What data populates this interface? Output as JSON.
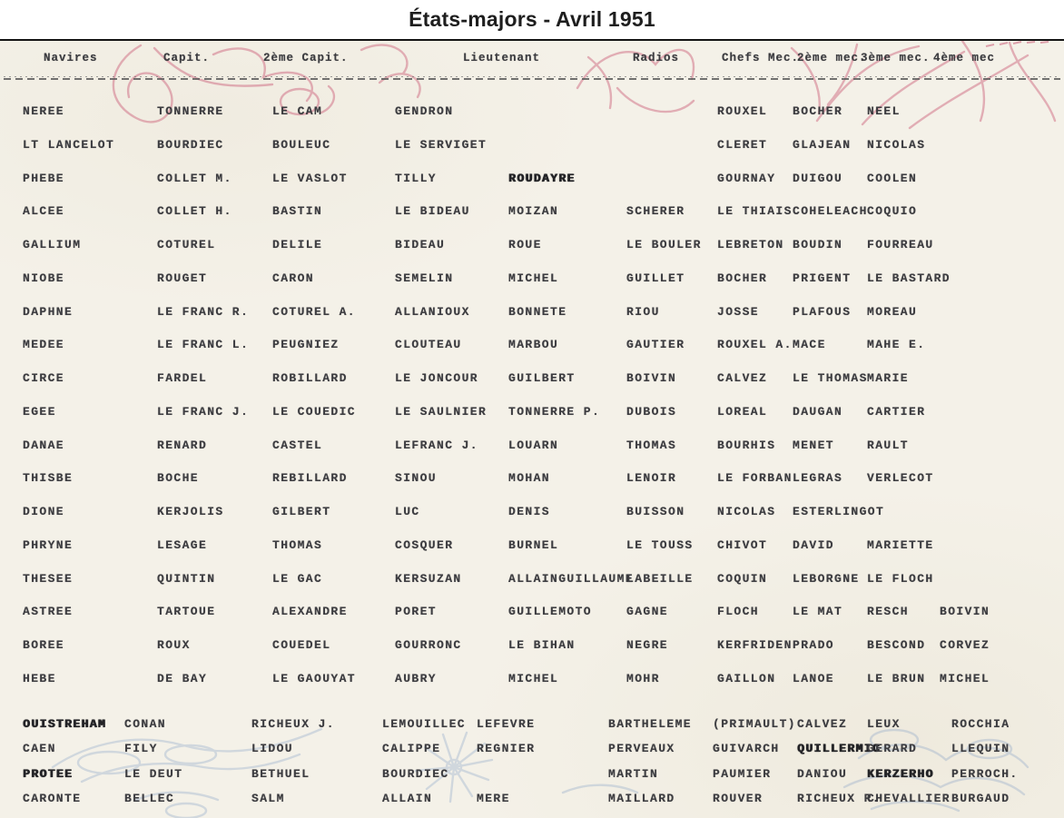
{
  "title": "États-majors - Avril 1951",
  "colors": {
    "paper": "#f4f1e8",
    "typewriter_ink": "#3c3c40",
    "red_flourish": "#c8506e",
    "blue_flourish": "#7f9cc4"
  },
  "table": {
    "headers": [
      "Navires",
      "Capit.",
      "2ème Capit.",
      "Lieutenant",
      "Radios",
      "Chefs Mec.",
      "2ème mec.",
      "3ème mec.",
      "4ème mec"
    ],
    "rows": [
      {
        "ship": "NEREE",
        "crew": [
          "TONNERRE",
          "LE CAM",
          "GENDRON",
          "",
          "",
          "ROUXEL",
          "BOCHER",
          "NEEL",
          ""
        ]
      },
      {
        "ship": "LT LANCELOT",
        "crew": [
          "BOURDIEC",
          "BOULEUC",
          "LE SERVIGET",
          "",
          "",
          "CLERET",
          "GLAJEAN",
          "NICOLAS",
          ""
        ]
      },
      {
        "ship": "PHEBE",
        "crew": [
          "COLLET M.",
          "LE VASLOT",
          "TILLY",
          {
            "t": "ROUDAYRE",
            "bold": true
          },
          "",
          "GOURNAY",
          "DUIGOU",
          "COOLEN",
          ""
        ]
      },
      {
        "ship": "ALCEE",
        "crew": [
          "COLLET H.",
          "BASTIN",
          "LE BIDEAU",
          "MOIZAN",
          "SCHERER",
          "LE THIAIS",
          "COHELEACH",
          "COQUIO",
          ""
        ]
      },
      {
        "ship": "GALLIUM",
        "crew": [
          "COTUREL",
          "DELILE",
          "BIDEAU",
          "ROUE",
          "LE BOULER",
          "LEBRETON",
          "BOUDIN",
          "FOURREAU",
          ""
        ]
      },
      {
        "ship": "NIOBE",
        "crew": [
          "ROUGET",
          "CARON",
          "SEMELIN",
          "MICHEL",
          "GUILLET",
          "BOCHER",
          "PRIGENT",
          "LE BASTARD",
          ""
        ]
      },
      {
        "ship": "DAPHNE",
        "crew": [
          "LE FRANC R.",
          "COTUREL A.",
          "ALLANIOUX",
          "BONNETE",
          "RIOU",
          "JOSSE",
          "PLAFOUS",
          "MOREAU",
          ""
        ]
      },
      {
        "ship": "MEDEE",
        "crew": [
          "LE FRANC L.",
          "PEUGNIEZ",
          "CLOUTEAU",
          "MARBOU",
          "GAUTIER",
          "ROUXEL A.",
          "MACE",
          "MAHE E.",
          ""
        ]
      },
      {
        "ship": "CIRCE",
        "crew": [
          "FARDEL",
          "ROBILLARD",
          "LE JONCOUR",
          "GUILBERT",
          "BOIVIN",
          "CALVEZ",
          "LE THOMAS",
          "MARIE",
          ""
        ]
      },
      {
        "ship": "EGEE",
        "crew": [
          "LE FRANC J.",
          "LE COUEDIC",
          "LE SAULNIER",
          "TONNERRE P.",
          "DUBOIS",
          "LOREAL",
          "DAUGAN",
          "CARTIER",
          ""
        ]
      },
      {
        "ship": "DANAE",
        "crew": [
          "RENARD",
          "CASTEL",
          "LEFRANC J.",
          "LOUARN",
          "THOMAS",
          "BOURHIS",
          "MENET",
          "RAULT",
          ""
        ]
      },
      {
        "ship": "THISBE",
        "crew": [
          "BOCHE",
          "REBILLARD",
          "SINOU",
          "MOHAN",
          "LENOIR",
          "LE FORBAN",
          "LEGRAS",
          "VERLECOT",
          ""
        ]
      },
      {
        "ship": "DIONE",
        "crew": [
          "KERJOLIS",
          "GILBERT",
          "LUC",
          "DENIS",
          "BUISSON",
          "NICOLAS",
          "ESTERLINGOT",
          "",
          ""
        ]
      },
      {
        "ship": "PHRYNE",
        "crew": [
          "LESAGE",
          "THOMAS",
          "COSQUER",
          "BURNEL",
          "LE TOUSS",
          "CHIVOT",
          "DAVID",
          "MARIETTE",
          ""
        ]
      },
      {
        "ship": "THESEE",
        "crew": [
          "QUINTIN",
          "LE GAC",
          "KERSUZAN",
          "ALLAINGUILLAUME",
          "LABEILLE",
          "COQUIN",
          "LEBORGNE",
          "LE FLOCH",
          ""
        ]
      },
      {
        "ship": "ASTREE",
        "crew": [
          "TARTOUE",
          "ALEXANDRE",
          "PORET",
          "GUILLEMOTO",
          "GAGNE",
          "FLOCH",
          "LE MAT",
          "RESCH",
          "BOIVIN"
        ]
      },
      {
        "ship": "BOREE",
        "crew": [
          "ROUX",
          "COUEDEL",
          "GOURRONC",
          "LE BIHAN",
          "NEGRE",
          "KERFRIDEN",
          "PRADO",
          "BESCOND",
          "CORVEZ"
        ]
      },
      {
        "ship": "HEBE",
        "crew": [
          "DE BAY",
          "LE GAOUYAT",
          "AUBRY",
          "MICHEL",
          "MOHR",
          "GAILLON",
          "LANOE",
          "LE BRUN",
          "MICHEL"
        ]
      },
      {
        "ship": "OUISTREHAM",
        "ship_bold": true,
        "crew": [
          "CONAN",
          "RICHEUX J.",
          "LEMOUILLEC",
          "LEFEVRE",
          "BARTHELEME",
          "(PRIMAULT)",
          "CALVEZ",
          "LEUX",
          "ROCCHIA"
        ]
      },
      {
        "ship": "CAEN",
        "crew": [
          "FILY",
          "LIDOU",
          "CALIPPE",
          "REGNIER",
          "PERVEAUX",
          "GUIVARCH",
          {
            "t": "QUILLERMIC",
            "bold": true
          },
          "GERARD",
          "LLEQUIN"
        ]
      },
      {
        "ship": "PROTEE",
        "ship_bold": true,
        "crew": [
          "LE DEUT",
          "BETHUEL",
          "BOURDIEC",
          "",
          "MARTIN",
          "PAUMIER",
          "DANIOU",
          {
            "t": "KERZERHO",
            "bold": true
          },
          "PERROCH."
        ]
      },
      {
        "ship": "CARONTE",
        "crew": [
          "BELLEC",
          "SALM",
          "ALLAIN",
          "MERE",
          "MAILLARD",
          "ROUVER",
          "RICHEUX R.",
          "CHEVALLIER",
          "BURGAUD"
        ]
      }
    ]
  }
}
